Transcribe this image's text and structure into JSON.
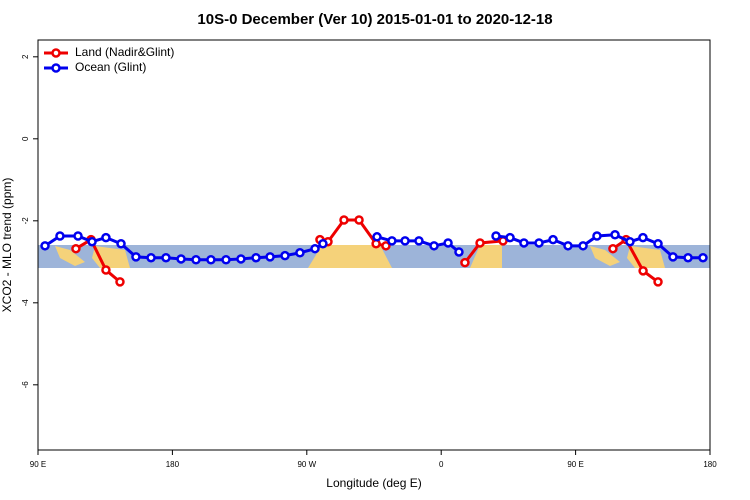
{
  "chart_data": {
    "type": "line",
    "title": "10S-0 December (Ver 10)   2015-01-01 to 2020-12-18",
    "x_label": "Longitude (deg E)",
    "y_label": "XCO2 - MLO trend (ppm)",
    "xlim": [
      90,
      540
    ],
    "xticks": [
      {
        "value": 90,
        "label": "90 E"
      },
      180,
      {
        "value": 270,
        "label": "90 W"
      },
      {
        "value": 360,
        "label": "0"
      },
      {
        "value": 450,
        "label": "90 E"
      },
      {
        "value": 540,
        "label": "180"
      }
    ],
    "ylim": [
      2.41,
      -7.59
    ],
    "yticks": [
      2,
      0,
      -2,
      -4,
      -6
    ],
    "legend": "top-left",
    "series": [
      {
        "name": "Land (Nadir&Glint)",
        "color": "#ee0000",
        "x": [
          115.4,
          125.5,
          135.5,
          144.9,
          null,
          278.8,
          284.2,
          294.9,
          305,
          316.4,
          323,
          null,
          375.9,
          386,
          401.4,
          null,
          475,
          483.8,
          495.2,
          505.2
        ],
        "values": [
          -2.68,
          -2.46,
          -3.2,
          -3.49,
          null,
          -2.46,
          -2.51,
          -1.98,
          -1.98,
          -2.56,
          -2.61,
          null,
          -3.02,
          -2.54,
          -2.49,
          null,
          -2.68,
          -2.46,
          -3.22,
          -3.49
        ]
      },
      {
        "name": "Ocean (Glint)",
        "color": "#0000ee",
        "x": [
          94.7,
          104.7,
          116.8,
          126.2,
          135.5,
          145.6,
          155.6,
          165.7,
          175.7,
          185.8,
          195.8,
          205.8,
          215.9,
          225.9,
          236,
          245.4,
          255.4,
          265.4,
          275.5,
          280.8,
          null,
          317,
          327,
          335.8,
          345.1,
          355.2,
          364.6,
          371.9,
          null,
          396.7,
          406.1,
          415.4,
          425.5,
          434.9,
          444.9,
          455,
          464.3,
          476.4,
          486.4,
          495.1,
          505.2,
          515.2,
          525.3,
          535.3
        ],
        "values": [
          -2.61,
          -2.37,
          -2.37,
          -2.51,
          -2.41,
          -2.56,
          -2.88,
          -2.9,
          -2.9,
          -2.93,
          -2.95,
          -2.95,
          -2.95,
          -2.93,
          -2.9,
          -2.88,
          -2.85,
          -2.78,
          -2.68,
          -2.56,
          null,
          -2.39,
          -2.49,
          -2.49,
          -2.49,
          -2.61,
          -2.54,
          -2.76,
          null,
          -2.37,
          -2.41,
          -2.54,
          -2.54,
          -2.46,
          -2.61,
          -2.61,
          -2.37,
          -2.34,
          -2.51,
          -2.41,
          -2.56,
          -2.88,
          -2.9,
          -2.9
        ]
      }
    ]
  }
}
